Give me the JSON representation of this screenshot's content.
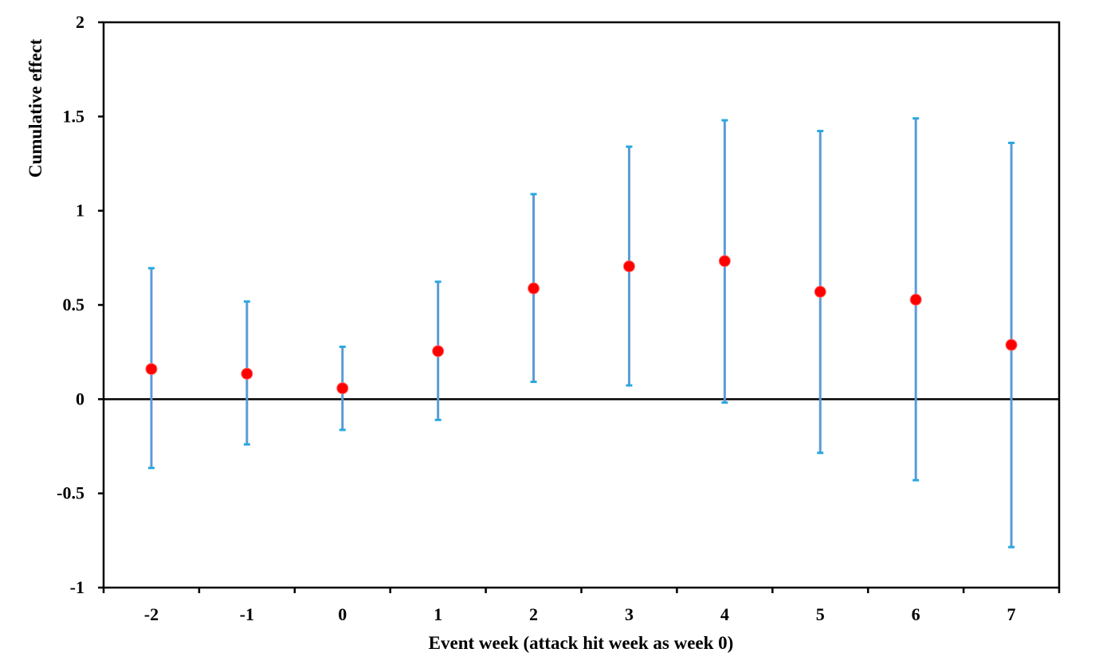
{
  "chart_data": {
    "type": "scatter",
    "title": "",
    "xlabel": "Event week (attack hit week as week 0)",
    "ylabel": "Cumulative effect",
    "categories": [
      "-2",
      "-1",
      "0",
      "1",
      "2",
      "3",
      "4",
      "5",
      "6",
      "7"
    ],
    "series": [
      {
        "values": [
          0.16,
          0.135,
          0.058,
          0.255,
          0.588,
          0.705,
          0.733,
          0.57,
          0.528,
          0.288
        ],
        "lower": [
          -0.365,
          -0.24,
          -0.163,
          -0.11,
          0.092,
          0.073,
          -0.018,
          -0.285,
          -0.43,
          -0.785
        ],
        "upper": [
          0.695,
          0.518,
          0.278,
          0.623,
          1.088,
          1.34,
          1.48,
          1.423,
          1.49,
          1.36
        ]
      }
    ],
    "ylim": [
      -1,
      2
    ],
    "yticks": [
      "-1",
      "-0.5",
      "0",
      "0.5",
      "1",
      "1.5",
      "2"
    ],
    "grid": false,
    "legend": "none",
    "colors": {
      "point": "#ff0000",
      "error_bar": "#5b9bd5",
      "cap": "#29a8e0",
      "axis": "#000000"
    }
  }
}
